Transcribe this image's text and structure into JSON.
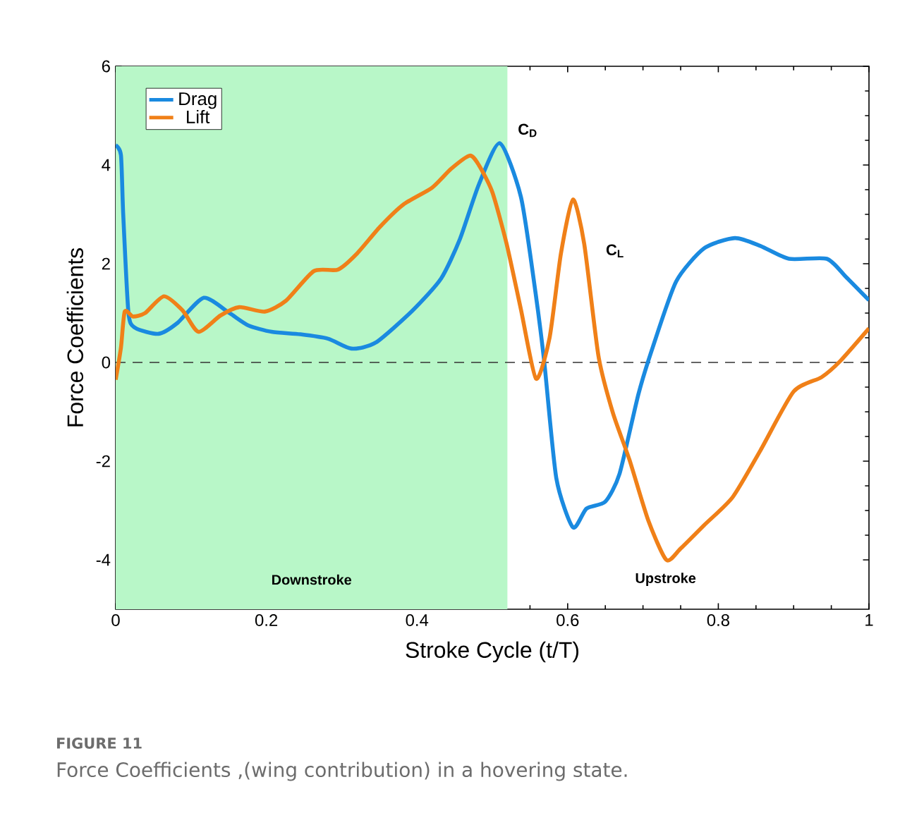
{
  "chart_data": {
    "type": "line",
    "xlabel": "Stroke Cycle (t/T)",
    "ylabel": "Force Coefficients",
    "xlim": [
      0,
      1
    ],
    "ylim": [
      -5,
      6
    ],
    "xticks": [
      0,
      0.2,
      0.4,
      0.6,
      0.8,
      1
    ],
    "yticks": [
      -4,
      -2,
      0,
      2,
      4,
      6
    ],
    "legend": "top left",
    "grid": false,
    "series": [
      {
        "name": "Drag",
        "color": "#1a8ae0",
        "x": [
          0,
          0.007,
          0.01,
          0.017,
          0.026,
          0.057,
          0.082,
          0.117,
          0.151,
          0.176,
          0.207,
          0.245,
          0.282,
          0.313,
          0.345,
          0.394,
          0.432,
          0.457,
          0.482,
          0.51,
          0.538,
          0.557,
          0.569,
          0.585,
          0.607,
          0.625,
          0.65,
          0.669,
          0.694,
          0.713,
          0.744,
          0.781,
          0.822,
          0.856,
          0.894,
          0.944,
          0.969,
          1
        ],
        "values": [
          4.4,
          4.2,
          3.0,
          1.0,
          0.7,
          0.58,
          0.8,
          1.31,
          1.0,
          0.75,
          0.62,
          0.57,
          0.48,
          0.28,
          0.4,
          1.05,
          1.7,
          2.5,
          3.6,
          4.44,
          3.35,
          1.45,
          0,
          -2.35,
          -3.34,
          -2.96,
          -2.82,
          -2.25,
          -0.64,
          0.31,
          1.64,
          2.31,
          2.52,
          2.36,
          2.1,
          2.1,
          1.74,
          1.26
        ]
      },
      {
        "name": "Lift",
        "color": "#f08018",
        "x": [
          0,
          0.007,
          0.012,
          0.023,
          0.039,
          0.064,
          0.089,
          0.11,
          0.139,
          0.164,
          0.198,
          0.226,
          0.263,
          0.295,
          0.32,
          0.351,
          0.382,
          0.42,
          0.445,
          0.47,
          0.482,
          0.5,
          0.519,
          0.538,
          0.558,
          0.576,
          0.591,
          0.607,
          0.622,
          0.641,
          0.66,
          0.682,
          0.707,
          0.731,
          0.75,
          0.781,
          0.819,
          0.856,
          0.9,
          0.937,
          0.962,
          1
        ],
        "values": [
          -0.35,
          0.3,
          1.03,
          0.93,
          1.0,
          1.34,
          1.05,
          0.62,
          0.95,
          1.12,
          1.03,
          1.25,
          1.85,
          1.88,
          2.2,
          2.75,
          3.2,
          3.54,
          3.92,
          4.19,
          4.0,
          3.45,
          2.4,
          1.07,
          -0.33,
          0.5,
          2.2,
          3.3,
          2.4,
          0.12,
          -1.02,
          -1.97,
          -3.2,
          -4.0,
          -3.77,
          -3.3,
          -2.73,
          -1.78,
          -0.59,
          -0.3,
          0.03,
          0.69
        ]
      }
    ],
    "ref_lines": [
      {
        "axis": "y",
        "value": 0,
        "color": "#333333",
        "line_style": "dashed"
      }
    ],
    "bands": [
      {
        "axis": "x",
        "from": 0,
        "to": 0.52,
        "label": "Downstroke",
        "color": "#b8f7c8"
      }
    ],
    "annotations": [
      "C$_{D}$",
      "C$_{L}$",
      "Upstroke",
      "FIGURE 11",
      "Force Coefficients ,(wing contribution) in a hovering state."
    ]
  }
}
